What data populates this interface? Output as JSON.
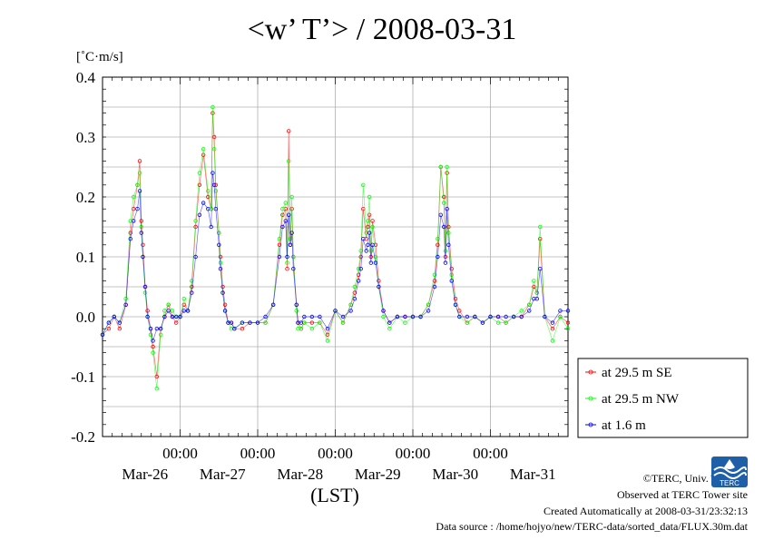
{
  "chart_data": {
    "type": "line",
    "title": "<w’ T’> / 2008-03-31",
    "ylabel": "[˚C·m/s]",
    "xlabel": "(LST)",
    "ylim": [
      -0.2,
      0.4
    ],
    "xlim": [
      0,
      6
    ],
    "y_ticks": [
      "0.4",
      "0.3",
      "0.2",
      "0.1",
      "0.0",
      "-0.1",
      "-0.2"
    ],
    "y_tick_values": [
      0.4,
      0.3,
      0.2,
      0.1,
      0.0,
      -0.1,
      -0.2
    ],
    "x_tick_time": [
      "00:00",
      "00:00",
      "00:00",
      "00:00",
      "00:00"
    ],
    "x_tick_dates": [
      "Mar-26",
      "Mar-27",
      "Mar-28",
      "Mar-29",
      "Mar-30",
      "Mar-31"
    ],
    "x_unit": "days from start of Mar-25 (00:00 gridlines at 1,2,3,4,5)",
    "grid": true,
    "legend_position": "right-bottom",
    "series": [
      {
        "name": "at 29.5 m SE",
        "color": "#ff0000",
        "x": [
          0.0,
          0.08,
          0.15,
          0.22,
          0.3,
          0.36,
          0.4,
          0.45,
          0.48,
          0.5,
          0.52,
          0.55,
          0.58,
          0.62,
          0.65,
          0.7,
          0.75,
          0.8,
          0.85,
          0.9,
          0.95,
          1.0,
          1.05,
          1.1,
          1.15,
          1.2,
          1.25,
          1.3,
          1.36,
          1.4,
          1.42,
          1.44,
          1.46,
          1.5,
          1.52,
          1.55,
          1.58,
          1.62,
          1.66,
          1.7,
          1.8,
          1.9,
          2.0,
          2.1,
          2.2,
          2.28,
          2.32,
          2.36,
          2.38,
          2.4,
          2.42,
          2.44,
          2.46,
          2.5,
          2.52,
          2.56,
          2.6,
          2.7,
          2.8,
          2.9,
          3.0,
          3.1,
          3.2,
          3.25,
          3.3,
          3.33,
          3.36,
          3.4,
          3.42,
          3.44,
          3.46,
          3.48,
          3.52,
          3.56,
          3.62,
          3.7,
          3.8,
          3.9,
          4.0,
          4.1,
          4.2,
          4.28,
          4.32,
          4.36,
          4.4,
          4.42,
          4.44,
          4.46,
          4.5,
          4.55,
          4.6,
          4.7,
          4.8,
          4.9,
          5.0,
          5.1,
          5.2,
          5.3,
          5.4,
          5.5,
          5.56,
          5.6,
          5.64,
          5.7,
          5.8,
          5.9,
          6.0
        ],
        "values": [
          -0.03,
          -0.02,
          0.0,
          -0.02,
          0.02,
          0.14,
          0.18,
          0.22,
          0.26,
          0.16,
          0.12,
          0.05,
          0.01,
          -0.02,
          -0.05,
          -0.1,
          -0.02,
          0.0,
          0.02,
          0.0,
          -0.01,
          0.0,
          0.02,
          0.01,
          0.05,
          0.15,
          0.22,
          0.27,
          0.2,
          0.18,
          0.34,
          0.3,
          0.22,
          0.14,
          0.1,
          0.05,
          0.02,
          -0.01,
          -0.01,
          -0.02,
          -0.02,
          -0.01,
          -0.01,
          -0.01,
          0.02,
          0.12,
          0.17,
          0.18,
          0.08,
          0.31,
          0.12,
          0.18,
          0.1,
          0.02,
          -0.01,
          -0.02,
          -0.01,
          -0.01,
          -0.01,
          -0.03,
          0.01,
          -0.01,
          0.02,
          0.04,
          0.07,
          0.1,
          0.18,
          0.13,
          0.15,
          0.17,
          0.1,
          0.16,
          0.12,
          0.06,
          0.01,
          -0.01,
          0.0,
          0.0,
          0.0,
          0.0,
          0.02,
          0.06,
          0.12,
          0.25,
          0.2,
          0.1,
          0.24,
          0.15,
          0.08,
          0.03,
          0.01,
          -0.01,
          0.0,
          -0.01,
          0.0,
          0.0,
          -0.01,
          0.0,
          0.0,
          0.02,
          0.05,
          0.04,
          0.13,
          0.0,
          -0.02,
          0.0,
          -0.01
        ]
      },
      {
        "name": "at 29.5 m NW",
        "color": "#00ff00",
        "x": [
          0.0,
          0.08,
          0.15,
          0.22,
          0.3,
          0.36,
          0.4,
          0.45,
          0.48,
          0.5,
          0.52,
          0.55,
          0.58,
          0.62,
          0.65,
          0.7,
          0.75,
          0.8,
          0.85,
          0.9,
          0.95,
          1.0,
          1.05,
          1.1,
          1.15,
          1.2,
          1.25,
          1.3,
          1.36,
          1.4,
          1.42,
          1.44,
          1.46,
          1.5,
          1.52,
          1.55,
          1.58,
          1.62,
          1.66,
          1.7,
          1.8,
          1.9,
          2.0,
          2.1,
          2.2,
          2.28,
          2.32,
          2.36,
          2.38,
          2.4,
          2.42,
          2.44,
          2.46,
          2.5,
          2.52,
          2.56,
          2.6,
          2.7,
          2.8,
          2.9,
          3.0,
          3.1,
          3.2,
          3.25,
          3.3,
          3.33,
          3.36,
          3.4,
          3.42,
          3.44,
          3.46,
          3.48,
          3.52,
          3.56,
          3.62,
          3.7,
          3.8,
          3.9,
          4.0,
          4.1,
          4.2,
          4.28,
          4.32,
          4.36,
          4.4,
          4.42,
          4.44,
          4.46,
          4.5,
          4.55,
          4.6,
          4.7,
          4.8,
          4.9,
          5.0,
          5.1,
          5.2,
          5.3,
          5.4,
          5.5,
          5.56,
          5.6,
          5.64,
          5.7,
          5.8,
          5.9,
          6.0
        ],
        "values": [
          -0.03,
          -0.01,
          0.0,
          -0.01,
          0.03,
          0.16,
          0.2,
          0.22,
          0.24,
          0.15,
          0.1,
          0.04,
          0.0,
          -0.03,
          -0.06,
          -0.12,
          -0.03,
          0.01,
          0.02,
          0.01,
          0.0,
          0.0,
          0.03,
          0.01,
          0.06,
          0.16,
          0.24,
          0.28,
          0.21,
          0.18,
          0.35,
          0.28,
          0.21,
          0.14,
          0.09,
          0.04,
          0.01,
          -0.01,
          -0.02,
          -0.02,
          -0.01,
          -0.01,
          -0.01,
          -0.01,
          0.02,
          0.13,
          0.18,
          0.19,
          0.09,
          0.26,
          0.13,
          0.2,
          0.1,
          0.01,
          -0.02,
          -0.02,
          -0.01,
          -0.02,
          -0.01,
          -0.04,
          0.01,
          -0.01,
          0.02,
          0.05,
          0.08,
          0.11,
          0.22,
          0.14,
          0.16,
          0.2,
          0.11,
          0.15,
          0.1,
          0.05,
          0.0,
          -0.02,
          0.0,
          -0.01,
          0.0,
          0.0,
          0.02,
          0.07,
          0.13,
          0.25,
          0.19,
          0.11,
          0.25,
          0.14,
          0.07,
          0.02,
          0.0,
          -0.01,
          0.0,
          -0.01,
          0.0,
          -0.01,
          -0.01,
          0.0,
          0.01,
          0.02,
          0.06,
          0.04,
          0.15,
          0.0,
          -0.04,
          0.0,
          -0.02
        ]
      },
      {
        "name": "at 1.6 m",
        "color": "#0000ff",
        "x": [
          0.0,
          0.08,
          0.15,
          0.22,
          0.3,
          0.36,
          0.4,
          0.45,
          0.48,
          0.5,
          0.52,
          0.55,
          0.58,
          0.62,
          0.65,
          0.7,
          0.75,
          0.8,
          0.85,
          0.9,
          0.95,
          1.0,
          1.05,
          1.1,
          1.15,
          1.2,
          1.25,
          1.3,
          1.36,
          1.4,
          1.42,
          1.44,
          1.46,
          1.5,
          1.52,
          1.55,
          1.58,
          1.62,
          1.66,
          1.7,
          1.8,
          1.9,
          2.0,
          2.1,
          2.2,
          2.28,
          2.32,
          2.36,
          2.38,
          2.4,
          2.42,
          2.44,
          2.46,
          2.5,
          2.52,
          2.56,
          2.6,
          2.7,
          2.8,
          2.9,
          3.0,
          3.1,
          3.2,
          3.25,
          3.3,
          3.33,
          3.36,
          3.4,
          3.42,
          3.44,
          3.46,
          3.48,
          3.52,
          3.56,
          3.62,
          3.7,
          3.8,
          3.9,
          4.0,
          4.1,
          4.2,
          4.28,
          4.32,
          4.36,
          4.4,
          4.42,
          4.44,
          4.46,
          4.5,
          4.55,
          4.6,
          4.7,
          4.8,
          4.9,
          5.0,
          5.1,
          5.2,
          5.3,
          5.4,
          5.5,
          5.56,
          5.6,
          5.64,
          5.7,
          5.8,
          5.9,
          6.0
        ],
        "values": [
          -0.03,
          -0.01,
          0.0,
          -0.01,
          0.02,
          0.13,
          0.16,
          0.18,
          0.21,
          0.14,
          0.1,
          0.05,
          0.0,
          -0.02,
          -0.04,
          -0.02,
          -0.02,
          0.0,
          0.01,
          0.0,
          0.0,
          0.0,
          0.01,
          0.01,
          0.04,
          0.1,
          0.17,
          0.19,
          0.18,
          0.15,
          0.24,
          0.22,
          0.18,
          0.12,
          0.08,
          0.04,
          0.01,
          -0.01,
          -0.01,
          -0.02,
          -0.01,
          -0.01,
          -0.01,
          0.0,
          0.02,
          0.1,
          0.15,
          0.16,
          0.1,
          0.17,
          0.12,
          0.14,
          0.08,
          0.02,
          -0.01,
          -0.01,
          0.0,
          0.0,
          0.0,
          -0.02,
          0.01,
          0.0,
          0.01,
          0.03,
          0.06,
          0.08,
          0.13,
          0.11,
          0.12,
          0.14,
          0.09,
          0.12,
          0.09,
          0.05,
          0.01,
          -0.01,
          0.0,
          0.0,
          0.0,
          0.0,
          0.01,
          0.05,
          0.1,
          0.17,
          0.15,
          0.09,
          0.18,
          0.12,
          0.06,
          0.02,
          0.0,
          0.0,
          0.0,
          -0.01,
          0.0,
          0.0,
          0.0,
          0.0,
          0.0,
          0.01,
          0.03,
          0.03,
          0.08,
          0.0,
          -0.01,
          0.01,
          0.01
        ]
      }
    ]
  },
  "credits": {
    "copyright": "©TERC, Univ. Tsukuba",
    "site": "Observed at TERC Tower site",
    "created": "Created Automatically at 2008-03-31/23:32:13",
    "source": "Data source : /home/hojyo/new/TERC-data/sorted_data/FLUX.30m.dat",
    "logo_text": "TERC"
  }
}
